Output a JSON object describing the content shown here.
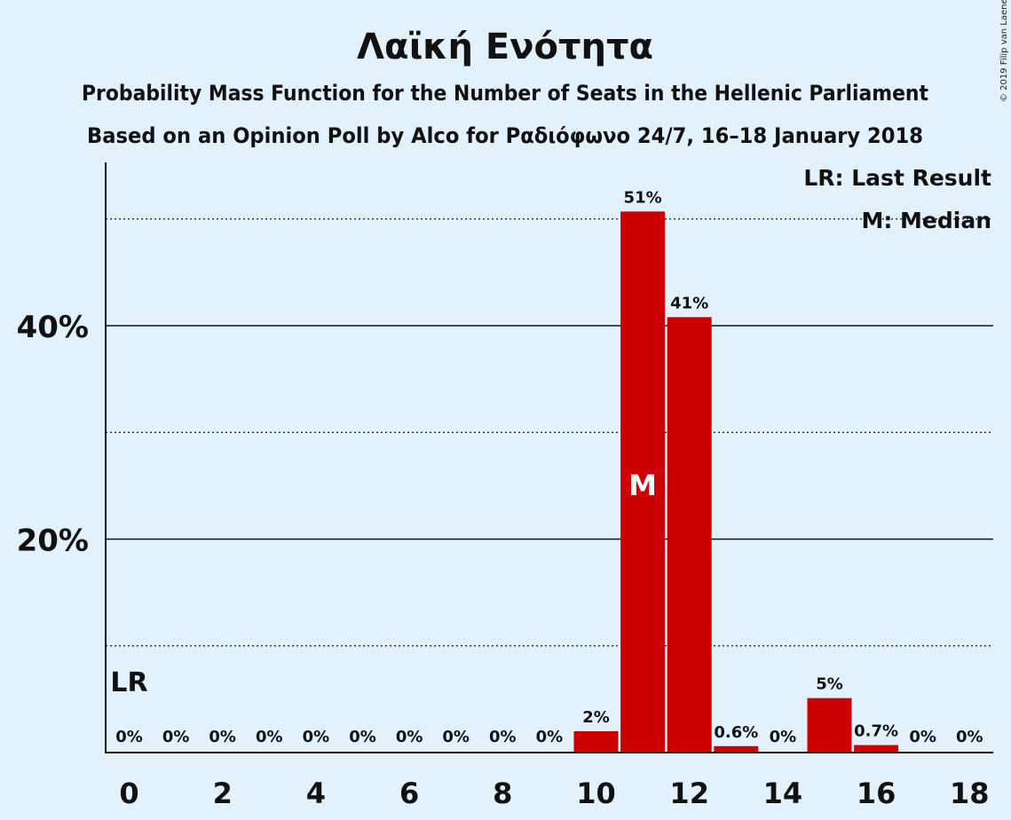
{
  "copyright": "© 2019 Filip van Laenen",
  "chart_data": {
    "type": "bar",
    "title": "Λαϊκή Ενότητα",
    "subtitle_1": "Probability Mass Function for the Number of Seats in the Hellenic Parliament",
    "subtitle_2": "Based on an Opinion Poll by Alco for Ραδιόφωνο 24/7, 16–18 January 2018",
    "x": [
      0,
      1,
      2,
      3,
      4,
      5,
      6,
      7,
      8,
      9,
      10,
      11,
      12,
      13,
      14,
      15,
      16,
      17,
      18
    ],
    "values": [
      0,
      0,
      0,
      0,
      0,
      0,
      0,
      0,
      0,
      0,
      2.0,
      50.7,
      40.8,
      0.6,
      0,
      5.1,
      0.7,
      0,
      0
    ],
    "data_labels": [
      "0%",
      "0%",
      "0%",
      "0%",
      "0%",
      "0%",
      "0%",
      "0%",
      "0%",
      "0%",
      "2%",
      "51%",
      "41%",
      "0.6%",
      "0%",
      "5%",
      "0.7%",
      "0%",
      "0%"
    ],
    "x_tick_labels": [
      "0",
      "2",
      "4",
      "6",
      "8",
      "10",
      "12",
      "14",
      "16",
      "18"
    ],
    "x_tick_values": [
      0,
      2,
      4,
      6,
      8,
      10,
      12,
      14,
      16,
      18
    ],
    "y_tick_labels": [
      "20%",
      "40%"
    ],
    "y_tick_values": [
      20,
      40
    ],
    "y_minor_gridlines": [
      10,
      30,
      50
    ],
    "ylim": [
      0,
      55
    ],
    "last_result_seats": 0,
    "last_result_label": "LR",
    "median_seats": 11,
    "median_label": "M",
    "legend": [
      "LR: Last Result",
      "M: Median"
    ],
    "legend_position": "top-right",
    "bar_color": "#cc0000",
    "background_color": "#e3f1fd"
  }
}
